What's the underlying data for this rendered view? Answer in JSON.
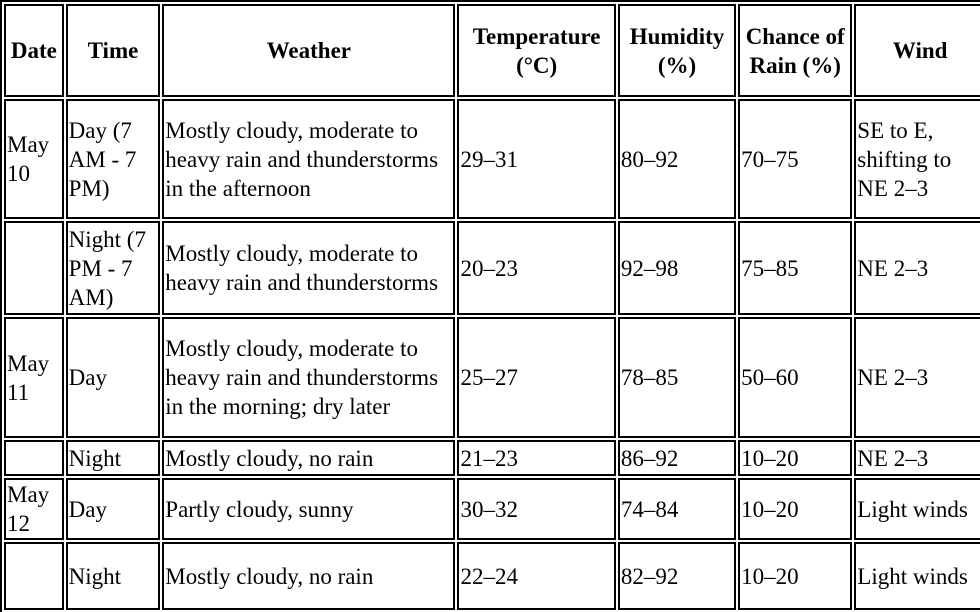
{
  "table": {
    "headers": {
      "date": "Date",
      "time": "Time",
      "weather": "Weather",
      "temperature": "Temperature (°C)",
      "humidity": "Humidity (%)",
      "chance_of_rain": "Chance of Rain (%)",
      "wind": "Wind"
    },
    "rows": [
      {
        "date": "May 10",
        "time": "Day (7 AM - 7 PM)",
        "weather": "Mostly cloudy, moderate to heavy rain and thunderstorms in the afternoon",
        "temperature": "29–31",
        "humidity": "80–92",
        "chance_of_rain": "70–75",
        "wind": "SE to E, shifting to NE 2–3"
      },
      {
        "date": "",
        "time": "Night (7 PM - 7 AM)",
        "weather": "Mostly cloudy, moderate to heavy rain and thunderstorms",
        "temperature": "20–23",
        "humidity": "92–98",
        "chance_of_rain": "75–85",
        "wind": "NE 2–3"
      },
      {
        "date": "May 11",
        "time": "Day",
        "weather": "Mostly cloudy, moderate to heavy rain and thunderstorms in the morning; dry later",
        "temperature": "25–27",
        "humidity": "78–85",
        "chance_of_rain": "50–60",
        "wind": "NE 2–3"
      },
      {
        "date": "",
        "time": "Night",
        "weather": "Mostly cloudy, no rain",
        "temperature": "21–23",
        "humidity": "86–92",
        "chance_of_rain": "10–20",
        "wind": "NE 2–3"
      },
      {
        "date": "May 12",
        "time": "Day",
        "weather": "Partly cloudy, sunny",
        "temperature": "30–32",
        "humidity": "74–84",
        "chance_of_rain": "10–20",
        "wind": "Light winds"
      },
      {
        "date": "",
        "time": "Night",
        "weather": "Mostly cloudy, no rain",
        "temperature": "22–24",
        "humidity": "82–92",
        "chance_of_rain": "10–20",
        "wind": "Light winds"
      }
    ]
  }
}
